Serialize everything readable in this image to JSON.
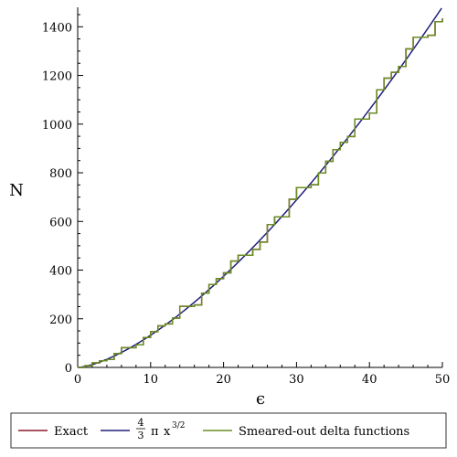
{
  "chart_data": {
    "type": "line",
    "ylabel": "N",
    "xlabel": "ϵ",
    "xlim": [
      0,
      50
    ],
    "ylim": [
      0,
      1480
    ],
    "xticks": [
      "0",
      "10",
      "20",
      "30",
      "40",
      "50"
    ],
    "yticks": [
      "0",
      "200",
      "400",
      "600",
      "800",
      "1000",
      "1200",
      "1400"
    ],
    "grid": false,
    "legend_position": "bottom",
    "series": [
      {
        "name": "Exact",
        "color": "#8B1A2B",
        "kind": "step"
      },
      {
        "name": "4/3 π x^{3/2}",
        "color": "#1F1F7A",
        "kind": "curve",
        "formula": "4/3*pi*x^(3/2)"
      },
      {
        "name": "Smeared-out delta functions",
        "color": "#6B8E23",
        "kind": "step"
      }
    ],
    "step_data": {
      "x": [
        0,
        1,
        2,
        3,
        4,
        5,
        6,
        7,
        8,
        9,
        10,
        11,
        12,
        13,
        14,
        15,
        16,
        17,
        18,
        19,
        20,
        21,
        22,
        23,
        24,
        25,
        26,
        27,
        28,
        29,
        30,
        31,
        32,
        33,
        34,
        35,
        36,
        37,
        38,
        39,
        40,
        41,
        42,
        43,
        44,
        45,
        46,
        47,
        48,
        49,
        50
      ],
      "y": [
        0,
        7,
        19,
        27,
        33,
        57,
        81,
        81,
        93,
        123,
        147,
        171,
        179,
        203,
        251,
        251,
        257,
        305,
        341,
        365,
        389,
        437,
        461,
        461,
        485,
        515,
        587,
        619,
        619,
        691,
        739,
        739,
        751,
        799,
        847,
        895,
        925,
        949,
        1021,
        1021,
        1045,
        1141,
        1189,
        1213,
        1237,
        1309,
        1357,
        1357,
        1365,
        1421,
        1435
      ]
    },
    "legend": {
      "exact": "Exact",
      "curve_num": "4",
      "curve_den": "3",
      "curve_pi": "π",
      "curve_x": "x",
      "curve_exp": "3/2",
      "smeared": "Smeared-out delta functions"
    }
  }
}
